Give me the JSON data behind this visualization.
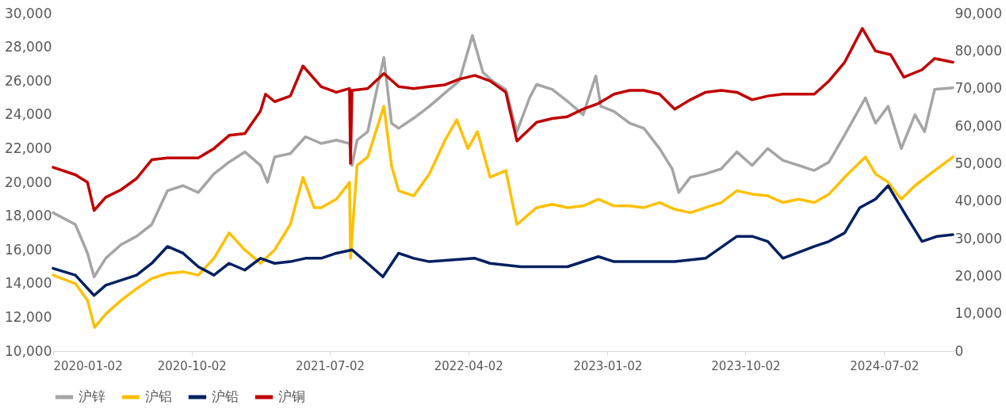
{
  "chart_data": {
    "type": "line",
    "line_style": "solid",
    "marker": "none",
    "grid": false,
    "legend": "bottom",
    "xlim": [
      "2020-01-02",
      "2024-11-15"
    ],
    "xticks": [
      "2020-01-02",
      "2020-10-02",
      "2021-07-02",
      "2022-04-02",
      "2023-01-02",
      "2023-10-02",
      "2024-07-02"
    ],
    "ylim": [
      10000,
      30000
    ],
    "yticks": [
      {
        "value": 10000,
        "label": "10,000"
      },
      {
        "value": 12000,
        "label": "12,000"
      },
      {
        "value": 14000,
        "label": "14,000"
      },
      {
        "value": 16000,
        "label": "16,000"
      },
      {
        "value": 18000,
        "label": "18,000"
      },
      {
        "value": 20000,
        "label": "20,000"
      },
      {
        "value": 22000,
        "label": "22,000"
      },
      {
        "value": 24000,
        "label": "24,000"
      },
      {
        "value": 26000,
        "label": "26,000"
      },
      {
        "value": 28000,
        "label": "28,000"
      },
      {
        "value": 30000,
        "label": "30,000"
      }
    ],
    "y2lim": [
      0,
      90000
    ],
    "y2ticks": [
      {
        "value": 0,
        "label": "0"
      },
      {
        "value": 10000,
        "label": "10,000"
      },
      {
        "value": 20000,
        "label": "20,000"
      },
      {
        "value": 30000,
        "label": "30,000"
      },
      {
        "value": 40000,
        "label": "40,000"
      },
      {
        "value": 50000,
        "label": "50,000"
      },
      {
        "value": 60000,
        "label": "60,000"
      },
      {
        "value": 70000,
        "label": "70,000"
      },
      {
        "value": 80000,
        "label": "80,000"
      },
      {
        "value": 90000,
        "label": "90,000"
      }
    ],
    "series": [
      {
        "name": "沪锌",
        "color": "#a5a5a5",
        "x": [
          "2020-01-02",
          "2020-02-15",
          "2020-03-10",
          "2020-03-23",
          "2020-04-15",
          "2020-05-15",
          "2020-06-15",
          "2020-07-15",
          "2020-08-15",
          "2020-09-15",
          "2020-10-15",
          "2020-11-15",
          "2020-12-15",
          "2021-01-15",
          "2021-02-15",
          "2021-03-01",
          "2021-03-15",
          "2021-04-15",
          "2021-05-15",
          "2021-06-15",
          "2021-07-15",
          "2021-08-10",
          "2021-08-15",
          "2021-08-25",
          "2021-09-15",
          "2021-10-17",
          "2021-11-01",
          "2021-11-15",
          "2021-12-15",
          "2022-01-15",
          "2022-02-15",
          "2022-03-15",
          "2022-04-10",
          "2022-05-01",
          "2022-05-20",
          "2022-06-15",
          "2022-07-07",
          "2022-08-01",
          "2022-08-15",
          "2022-09-15",
          "2022-10-15",
          "2022-11-15",
          "2022-12-10",
          "2022-12-20",
          "2023-01-15",
          "2023-02-15",
          "2023-03-15",
          "2023-04-15",
          "2023-05-10",
          "2023-05-23",
          "2023-06-15",
          "2023-07-15",
          "2023-08-15",
          "2023-09-15",
          "2023-10-15",
          "2023-11-15",
          "2023-12-15",
          "2024-01-15",
          "2024-02-15",
          "2024-03-15",
          "2024-04-15",
          "2024-05-26",
          "2024-06-15",
          "2024-07-10",
          "2024-08-05",
          "2024-09-01",
          "2024-09-20",
          "2024-10-10",
          "2024-11-15"
        ],
        "values": [
          18200,
          17500,
          15800,
          14400,
          15500,
          16300,
          16800,
          17500,
          19500,
          19800,
          19400,
          20500,
          21200,
          21800,
          21000,
          20000,
          21500,
          21700,
          22700,
          22300,
          22500,
          22300,
          21000,
          22500,
          23000,
          27400,
          23500,
          23200,
          23800,
          24500,
          25300,
          26000,
          28700,
          26500,
          26000,
          25500,
          23000,
          25000,
          25800,
          25500,
          24800,
          24000,
          26300,
          24500,
          24200,
          23500,
          23200,
          22000,
          20800,
          19400,
          20300,
          20500,
          20800,
          21800,
          21000,
          22000,
          21300,
          21000,
          20700,
          21200,
          22800,
          25000,
          23500,
          24500,
          22000,
          24000,
          23000,
          25500,
          25600
        ]
      },
      {
        "name": "沪铝",
        "color": "#ffc000",
        "x": [
          "2020-01-02",
          "2020-02-15",
          "2020-03-10",
          "2020-03-24",
          "2020-04-15",
          "2020-05-15",
          "2020-06-15",
          "2020-07-15",
          "2020-08-15",
          "2020-09-15",
          "2020-10-15",
          "2020-11-15",
          "2020-12-15",
          "2021-01-15",
          "2021-02-15",
          "2021-03-15",
          "2021-04-15",
          "2021-05-10",
          "2021-06-01",
          "2021-06-15",
          "2021-07-15",
          "2021-08-10",
          "2021-08-12",
          "2021-08-25",
          "2021-09-15",
          "2021-10-17",
          "2021-11-01",
          "2021-11-15",
          "2021-12-15",
          "2022-01-15",
          "2022-02-15",
          "2022-03-10",
          "2022-04-01",
          "2022-04-20",
          "2022-05-15",
          "2022-06-15",
          "2022-07-07",
          "2022-08-15",
          "2022-09-15",
          "2022-10-15",
          "2022-11-15",
          "2022-12-15",
          "2023-01-15",
          "2023-02-15",
          "2023-03-15",
          "2023-04-15",
          "2023-05-15",
          "2023-06-15",
          "2023-07-15",
          "2023-08-15",
          "2023-09-15",
          "2023-10-15",
          "2023-11-15",
          "2023-12-15",
          "2024-01-15",
          "2024-02-15",
          "2024-03-15",
          "2024-04-15",
          "2024-05-26",
          "2024-06-15",
          "2024-07-10",
          "2024-08-05",
          "2024-09-01",
          "2024-10-10",
          "2024-11-15"
        ],
        "values": [
          14500,
          14000,
          13000,
          11400,
          12200,
          13000,
          13700,
          14300,
          14600,
          14700,
          14500,
          15500,
          17000,
          16000,
          15200,
          16000,
          17500,
          20300,
          18500,
          18500,
          19000,
          20000,
          15500,
          21000,
          21500,
          24500,
          21000,
          19500,
          19200,
          20500,
          22500,
          23700,
          22000,
          23000,
          20300,
          20700,
          17500,
          18500,
          18700,
          18500,
          18600,
          19000,
          18600,
          18600,
          18500,
          18800,
          18400,
          18200,
          18500,
          18800,
          19500,
          19300,
          19200,
          18800,
          19000,
          18800,
          19300,
          20300,
          21500,
          20500,
          20000,
          19000,
          19800,
          20700,
          21500
        ]
      },
      {
        "name": "沪铅",
        "color": "#002060",
        "x": [
          "2020-01-02",
          "2020-02-15",
          "2020-03-23",
          "2020-04-15",
          "2020-05-15",
          "2020-06-15",
          "2020-07-15",
          "2020-08-15",
          "2020-09-15",
          "2020-10-15",
          "2020-11-15",
          "2020-12-15",
          "2021-01-15",
          "2021-02-15",
          "2021-03-15",
          "2021-04-15",
          "2021-05-15",
          "2021-06-15",
          "2021-07-15",
          "2021-08-15",
          "2021-09-15",
          "2021-10-15",
          "2021-11-15",
          "2021-12-15",
          "2022-01-15",
          "2022-04-15",
          "2022-05-15",
          "2022-07-15",
          "2022-10-15",
          "2022-12-15",
          "2023-01-15",
          "2023-05-15",
          "2023-07-15",
          "2023-09-15",
          "2023-10-15",
          "2023-11-15",
          "2023-12-15",
          "2024-02-15",
          "2024-03-15",
          "2024-04-15",
          "2024-05-15",
          "2024-06-15",
          "2024-07-10",
          "2024-08-15",
          "2024-09-15",
          "2024-10-15",
          "2024-11-15"
        ],
        "values": [
          14900,
          14500,
          13300,
          13900,
          14200,
          14500,
          15200,
          16200,
          15800,
          15000,
          14500,
          15200,
          14800,
          15500,
          15200,
          15300,
          15500,
          15500,
          15800,
          16000,
          15200,
          14400,
          15800,
          15500,
          15300,
          15500,
          15200,
          15000,
          15000,
          15600,
          15300,
          15300,
          15500,
          16800,
          16800,
          16500,
          15500,
          16200,
          16500,
          17000,
          18500,
          19000,
          19800,
          18000,
          16500,
          16800,
          16900
        ]
      },
      {
        "name": "沪铜",
        "color": "#c00000",
        "axis": "y2",
        "x": [
          "2020-01-02",
          "2020-02-15",
          "2020-03-10",
          "2020-03-23",
          "2020-04-15",
          "2020-05-15",
          "2020-06-15",
          "2020-07-15",
          "2020-08-15",
          "2020-09-15",
          "2020-10-15",
          "2020-11-15",
          "2020-12-15",
          "2021-01-15",
          "2021-02-15",
          "2021-02-25",
          "2021-03-15",
          "2021-04-15",
          "2021-05-10",
          "2021-06-15",
          "2021-07-15",
          "2021-08-10",
          "2021-08-12",
          "2021-08-15",
          "2021-09-15",
          "2021-10-17",
          "2021-11-15",
          "2021-12-15",
          "2022-01-15",
          "2022-02-15",
          "2022-03-15",
          "2022-04-15",
          "2022-05-15",
          "2022-06-15",
          "2022-07-07",
          "2022-08-15",
          "2022-09-15",
          "2022-10-15",
          "2022-11-15",
          "2022-12-15",
          "2023-01-15",
          "2023-02-15",
          "2023-03-15",
          "2023-04-15",
          "2023-05-15",
          "2023-06-15",
          "2023-07-15",
          "2023-08-15",
          "2023-09-15",
          "2023-10-15",
          "2023-11-15",
          "2023-12-15",
          "2024-01-15",
          "2024-02-15",
          "2024-03-15",
          "2024-04-15",
          "2024-05-20",
          "2024-06-15",
          "2024-07-15",
          "2024-08-10",
          "2024-09-15",
          "2024-10-10",
          "2024-11-15"
        ],
        "values": [
          49000,
          47000,
          45000,
          37500,
          41000,
          43000,
          46000,
          51000,
          51500,
          51500,
          51500,
          54000,
          57500,
          58000,
          64000,
          68500,
          66500,
          68000,
          76000,
          70500,
          69000,
          70000,
          50000,
          69500,
          70000,
          74000,
          70500,
          70000,
          70500,
          71000,
          72500,
          73500,
          72000,
          69000,
          56000,
          61000,
          62000,
          62500,
          64500,
          66000,
          68500,
          69500,
          69500,
          68500,
          64500,
          67000,
          69000,
          69500,
          69000,
          67000,
          68000,
          68500,
          68500,
          68500,
          72000,
          77000,
          86000,
          80000,
          79000,
          73000,
          75000,
          78000,
          77000
        ]
      }
    ]
  }
}
